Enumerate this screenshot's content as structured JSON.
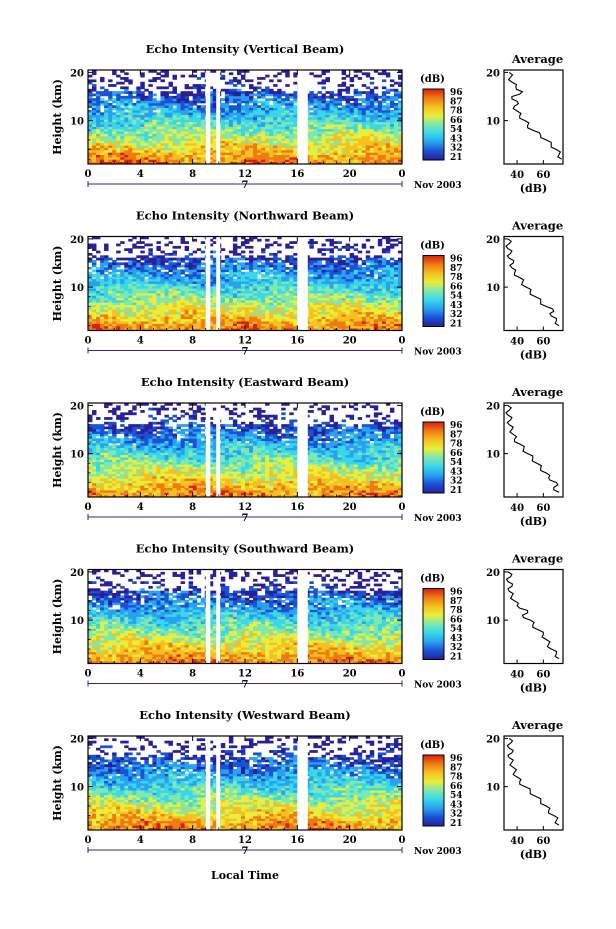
{
  "figure": {
    "xlabel": "Local Time",
    "date_label": "Nov 2003",
    "colorbar_unit": "(dB)",
    "colorbar_ticks": [
      "96",
      "87",
      "78",
      "66",
      "54",
      "43",
      "32",
      "21"
    ],
    "average_title": "Average",
    "average_xlabel": "(dB)",
    "colors": {
      "gap": "#ffffff",
      "background": "#ffffff",
      "ink": "#000000",
      "colormap": [
        "#2a1f9a",
        "#1a52d6",
        "#2aa0f0",
        "#38d8e8",
        "#7ee8b0",
        "#e8ee3a",
        "#f5c020",
        "#f07a12",
        "#d81e10"
      ]
    }
  },
  "chart_data": [
    {
      "type": "heatmap",
      "title": "Echo Intensity (Vertical Beam)",
      "ylabel": "Height (km)",
      "x_ticks": [
        "0",
        "4",
        "8",
        "12",
        "16",
        "20",
        "0"
      ],
      "y_ticks": [
        "20",
        "10"
      ],
      "xlim": [
        0,
        24
      ],
      "ylim": [
        1,
        20.5
      ],
      "day_label": "7",
      "gaps_hours": [
        [
          9.0,
          9.35
        ],
        [
          9.8,
          10.1
        ],
        [
          16.0,
          16.8
        ]
      ],
      "profile": {
        "xlabel": "(dB)",
        "x_ticks": [
          "40",
          "60"
        ],
        "xlim": [
          30,
          75
        ],
        "height_km": [
          2,
          3,
          4,
          5,
          6,
          7,
          8,
          9,
          10,
          11,
          12,
          13,
          14,
          15,
          16,
          17,
          18,
          19,
          20
        ],
        "value_db": [
          74,
          72,
          70,
          66,
          62,
          58,
          52,
          48,
          46,
          42,
          40,
          38,
          40,
          36,
          44,
          39,
          36,
          35,
          34
        ]
      }
    },
    {
      "type": "heatmap",
      "title": "Echo Intensity (Northward Beam)",
      "ylabel": "Height (km)",
      "x_ticks": [
        "0",
        "4",
        "8",
        "12",
        "16",
        "20",
        "0"
      ],
      "y_ticks": [
        "20",
        "10"
      ],
      "xlim": [
        0,
        24
      ],
      "ylim": [
        1,
        20.5
      ],
      "day_label": "7",
      "gaps_hours": [
        [
          9.0,
          9.35
        ],
        [
          9.8,
          10.1
        ],
        [
          16.0,
          16.8
        ]
      ],
      "profile": {
        "xlabel": "(dB)",
        "x_ticks": [
          "40",
          "60"
        ],
        "xlim": [
          30,
          75
        ],
        "height_km": [
          2,
          3,
          4,
          5,
          6,
          7,
          8,
          9,
          10,
          11,
          12,
          13,
          14,
          15,
          16,
          17,
          18,
          19,
          20
        ],
        "value_db": [
          72,
          70,
          66,
          68,
          62,
          58,
          54,
          50,
          47,
          44,
          42,
          38,
          36,
          37,
          34,
          35,
          33,
          34,
          33
        ]
      }
    },
    {
      "type": "heatmap",
      "title": "Echo Intensity (Eastward Beam)",
      "ylabel": "Height (km)",
      "x_ticks": [
        "0",
        "4",
        "8",
        "12",
        "16",
        "20",
        "0"
      ],
      "y_ticks": [
        "20",
        "10"
      ],
      "xlim": [
        0,
        24
      ],
      "ylim": [
        1,
        20.5
      ],
      "day_label": "7",
      "gaps_hours": [
        [
          9.0,
          9.35
        ],
        [
          9.8,
          10.1
        ],
        [
          16.0,
          16.8
        ]
      ],
      "profile": {
        "xlabel": "(dB)",
        "x_ticks": [
          "40",
          "60"
        ],
        "xlim": [
          30,
          75
        ],
        "height_km": [
          2,
          3,
          4,
          5,
          6,
          7,
          8,
          9,
          10,
          11,
          12,
          13,
          14,
          15,
          16,
          17,
          18,
          19,
          20
        ],
        "value_db": [
          72,
          68,
          70,
          64,
          62,
          58,
          55,
          52,
          48,
          45,
          42,
          38,
          37,
          36,
          34,
          35,
          33,
          34,
          33
        ]
      }
    },
    {
      "type": "heatmap",
      "title": "Echo Intensity (Southward Beam)",
      "ylabel": "Height (km)",
      "x_ticks": [
        "0",
        "4",
        "8",
        "12",
        "16",
        "20",
        "0"
      ],
      "y_ticks": [
        "20",
        "10"
      ],
      "xlim": [
        0,
        24
      ],
      "ylim": [
        1,
        20.5
      ],
      "day_label": "7",
      "gaps_hours": [
        [
          9.0,
          9.35
        ],
        [
          9.8,
          10.1
        ],
        [
          16.0,
          16.8
        ]
      ],
      "profile": {
        "xlabel": "(dB)",
        "x_ticks": [
          "40",
          "60"
        ],
        "xlim": [
          30,
          75
        ],
        "height_km": [
          2,
          3,
          4,
          5,
          6,
          7,
          8,
          9,
          10,
          11,
          12,
          13,
          14,
          15,
          16,
          17,
          18,
          19,
          20
        ],
        "value_db": [
          72,
          70,
          66,
          64,
          62,
          60,
          56,
          52,
          50,
          44,
          48,
          40,
          38,
          36,
          34,
          36,
          33,
          35,
          33
        ]
      }
    },
    {
      "type": "heatmap",
      "title": "Echo Intensity (Westward Beam)",
      "ylabel": "Height (km)",
      "x_ticks": [
        "0",
        "4",
        "8",
        "12",
        "16",
        "20",
        "0"
      ],
      "y_ticks": [
        "20",
        "10"
      ],
      "xlim": [
        0,
        24
      ],
      "ylim": [
        1,
        20.5
      ],
      "day_label": "7",
      "gaps_hours": [
        [
          9.0,
          9.35
        ],
        [
          9.8,
          10.1
        ],
        [
          16.0,
          16.8
        ]
      ],
      "profile": {
        "xlabel": "(dB)",
        "x_ticks": [
          "40",
          "60"
        ],
        "xlim": [
          30,
          75
        ],
        "height_km": [
          2,
          3,
          4,
          5,
          6,
          7,
          8,
          9,
          10,
          11,
          12,
          13,
          14,
          15,
          16,
          17,
          18,
          19,
          20
        ],
        "value_db": [
          72,
          70,
          68,
          64,
          62,
          58,
          54,
          50,
          46,
          42,
          40,
          38,
          37,
          36,
          34,
          36,
          34,
          35,
          34
        ]
      }
    }
  ]
}
